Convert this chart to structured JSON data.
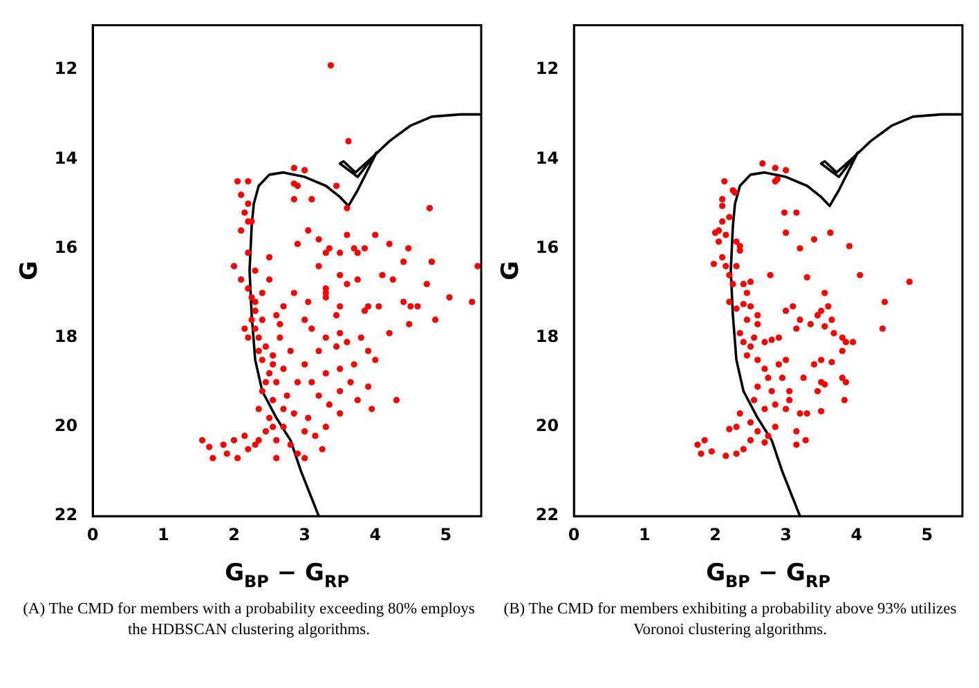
{
  "chart_data": [
    {
      "type": "scatter",
      "xlabel": "G$_{BP}$ − G$_{RP}$",
      "ylabel": "G",
      "xlim": [
        0,
        5.5
      ],
      "ylim": [
        22,
        11
      ],
      "xticks": [
        0,
        1,
        2,
        3,
        4,
        5
      ],
      "yticks": [
        12,
        14,
        16,
        18,
        20,
        22
      ],
      "grid": false,
      "legend": false,
      "annotations": [
        "(A) The CMD for members with a probability exceeding 80% employs the HDBSCAN clustering algorithms."
      ],
      "series": [
        {
          "type": "scatter",
          "marker": "circle",
          "color": "#ff0000",
          "x": [
            3.37,
            3.62,
            2.85,
            3.0,
            2.85,
            2.9,
            2.85,
            3.1,
            3.45,
            3.6,
            4.77,
            2.05,
            2.2,
            2.1,
            2.2,
            2.15,
            2.2,
            2.1,
            2.25,
            2.5,
            3.05,
            2.9,
            3.2,
            3.35,
            3.6,
            3.7,
            4.0,
            3.85,
            3.75,
            4.2,
            4.47,
            3.5,
            3.3,
            4.4,
            4.8,
            5.45,
            3.2,
            3.5,
            3.75,
            4.1,
            4.25,
            4.73,
            3.3,
            3.6,
            2.85,
            3.05,
            3.3,
            3.3,
            4.4,
            4.5,
            4.6,
            5.05,
            5.37,
            4.85,
            4.48,
            3.5,
            3.45,
            3.85,
            3.9,
            4.05,
            4.2,
            4.3,
            3.0,
            3.1,
            2.7,
            2.4,
            2.6,
            2.5,
            2.3,
            2.2,
            2.0,
            2.1,
            2.2,
            2.25,
            2.3,
            2.15,
            2.35,
            2.45,
            2.55,
            2.65,
            2.8,
            2.7,
            2.4,
            2.5,
            2.6,
            2.4,
            2.55,
            2.75,
            2.9,
            3.0,
            3.2,
            3.3,
            3.45,
            3.5,
            3.6,
            3.8,
            3.9,
            4.0,
            3.7,
            3.5,
            3.3,
            3.1,
            3.2,
            3.35,
            3.5,
            3.65,
            3.9,
            3.95,
            3.75,
            3.5,
            3.3,
            3.05,
            2.85,
            2.7,
            2.5,
            2.35,
            2.45,
            2.6,
            2.8,
            3.0,
            3.15,
            3.25,
            2.3,
            2.15,
            2.0,
            1.85,
            1.55,
            1.65,
            1.7,
            1.9,
            2.05,
            2.2,
            2.6,
            2.9,
            3.0,
            2.35,
            2.55,
            2.7,
            2.45,
            2.55,
            2.35,
            2.3,
            2.2,
            2.25,
            2.65,
            2.4,
            2.3
          ],
          "values": [
            11.9,
            13.6,
            14.2,
            14.25,
            14.55,
            14.6,
            14.9,
            14.9,
            14.6,
            15.1,
            15.1,
            14.5,
            14.5,
            14.8,
            15.0,
            15.2,
            15.4,
            15.6,
            15.4,
            16.2,
            15.6,
            15.9,
            15.8,
            16.0,
            15.7,
            16.0,
            15.7,
            16.0,
            16.1,
            15.9,
            16.0,
            16.1,
            16.1,
            16.3,
            16.3,
            16.4,
            16.4,
            16.6,
            16.7,
            16.6,
            16.7,
            16.8,
            16.9,
            16.8,
            17.0,
            17.2,
            17.0,
            17.1,
            17.2,
            17.3,
            17.3,
            17.1,
            17.2,
            17.6,
            17.7,
            17.3,
            17.5,
            17.4,
            17.3,
            17.3,
            17.9,
            19.4,
            17.6,
            17.8,
            17.3,
            17.6,
            17.5,
            16.7,
            16.5,
            16.1,
            16.4,
            16.7,
            16.9,
            17.1,
            17.4,
            17.8,
            18.0,
            18.2,
            18.4,
            18.0,
            18.3,
            18.7,
            18.5,
            18.8,
            19.0,
            19.2,
            19.4,
            19.3,
            19.0,
            18.6,
            18.3,
            18.0,
            18.2,
            17.9,
            18.1,
            18.0,
            18.3,
            18.5,
            18.6,
            18.7,
            18.8,
            19.0,
            19.3,
            19.5,
            19.2,
            19.0,
            19.1,
            19.6,
            19.4,
            19.7,
            20.0,
            19.8,
            19.7,
            20.0,
            19.8,
            19.6,
            20.1,
            20.3,
            20.4,
            20.1,
            20.2,
            20.5,
            20.4,
            20.2,
            20.3,
            20.4,
            20.3,
            20.45,
            20.7,
            20.6,
            20.7,
            20.5,
            20.7,
            20.6,
            20.7,
            20.3,
            20.0,
            19.6,
            19.0,
            18.6,
            18.3,
            17.8,
            18.0,
            17.6,
            17.7,
            17.0,
            17.2
          ]
        },
        {
          "type": "line",
          "marker": "none",
          "line_style": "solid",
          "color": "#000000",
          "x": [
            3.2,
            2.95,
            2.8,
            2.6,
            2.4,
            2.3,
            2.25,
            2.22,
            2.25,
            2.28,
            2.35,
            2.5,
            2.7,
            3.0,
            3.3,
            3.5,
            3.62,
            3.75,
            4.02,
            3.75,
            3.5,
            3.55,
            3.72,
            4.0,
            4.2,
            4.5,
            4.8,
            5.2,
            5.5
          ],
          "values": [
            22,
            21,
            20.3,
            19.8,
            19.2,
            18.5,
            17.5,
            16.5,
            15.5,
            15.0,
            14.6,
            14.35,
            14.3,
            14.4,
            14.6,
            14.85,
            15.05,
            14.7,
            13.85,
            14.4,
            14.1,
            14.05,
            14.3,
            13.9,
            13.6,
            13.25,
            13.05,
            13.0,
            13.0
          ]
        }
      ]
    },
    {
      "type": "scatter",
      "xlabel": "G$_{BP}$ − G$_{RP}$",
      "ylabel": "G",
      "xlim": [
        0,
        5.5
      ],
      "ylim": [
        22,
        11
      ],
      "xticks": [
        0,
        1,
        2,
        3,
        4,
        5
      ],
      "yticks": [
        12,
        14,
        16,
        18,
        20,
        22
      ],
      "grid": false,
      "legend": false,
      "annotations": [
        "(B) The CMD for members exhibiting a probability above 93% utilizes Voronoi clustering algorithms."
      ],
      "series": [
        {
          "type": "scatter",
          "marker": "circle",
          "color": "#ff0000",
          "x": [
            2.67,
            2.85,
            3.0,
            2.85,
            2.88,
            2.13,
            2.25,
            2.28,
            2.1,
            2.1,
            2.2,
            2.1,
            2.05,
            2.0,
            2.05,
            2.15,
            2.3,
            2.35,
            2.35,
            2.98,
            3.15,
            3.0,
            3.2,
            3.4,
            3.63,
            3.9,
            1.98,
            2.1,
            2.15,
            2.2,
            2.25,
            2.3,
            2.4,
            2.5,
            2.45,
            2.78,
            3.3,
            4.05,
            4.75,
            2.2,
            2.3,
            2.4,
            2.5,
            2.45,
            2.6,
            2.6,
            2.35,
            2.4,
            2.5,
            2.55,
            2.7,
            2.8,
            2.9,
            2.45,
            2.6,
            2.7,
            2.75,
            2.6,
            2.8,
            2.55,
            2.7,
            2.85,
            2.35,
            2.5,
            2.6,
            2.75,
            2.3,
            2.2,
            2.4,
            2.3,
            2.15,
            1.75,
            1.8,
            1.85,
            1.95,
            2.5,
            2.7,
            2.85,
            3.0,
            3.0,
            3.0,
            3.1,
            3.15,
            3.2,
            3.25,
            3.05,
            3.05,
            3.2,
            3.15,
            3.15,
            3.28,
            3.3,
            3.35,
            3.4,
            3.45,
            3.5,
            3.55,
            3.6,
            3.55,
            3.65,
            3.45,
            3.5,
            3.55,
            3.5,
            3.5,
            3.65,
            3.68,
            3.8,
            3.8,
            3.85,
            3.95,
            3.8,
            3.83,
            3.85,
            4.4,
            4.37,
            2.9,
            2.95
          ],
          "values": [
            14.1,
            14.2,
            14.25,
            14.5,
            14.45,
            14.5,
            14.7,
            14.75,
            14.9,
            15.05,
            15.3,
            15.4,
            15.6,
            15.65,
            15.85,
            15.7,
            15.85,
            15.95,
            16.05,
            15.2,
            15.2,
            15.65,
            16.0,
            15.8,
            15.65,
            15.95,
            16.35,
            16.2,
            16.4,
            16.6,
            16.8,
            16.4,
            16.8,
            16.75,
            17.0,
            16.6,
            16.65,
            16.6,
            16.75,
            17.2,
            17.35,
            17.25,
            17.3,
            17.6,
            17.5,
            17.7,
            17.9,
            18.1,
            18.2,
            18.0,
            18.1,
            18.05,
            18.0,
            18.4,
            18.5,
            18.7,
            18.9,
            19.1,
            19.2,
            19.4,
            19.6,
            19.5,
            19.7,
            19.9,
            20.1,
            20.2,
            20.0,
            20.05,
            20.5,
            20.6,
            20.65,
            20.4,
            20.6,
            20.3,
            20.55,
            20.3,
            20.35,
            20.0,
            19.6,
            18.5,
            17.4,
            17.3,
            17.8,
            17.6,
            18.9,
            19.2,
            19.4,
            19.7,
            20.1,
            20.4,
            20.3,
            19.7,
            17.7,
            18.6,
            17.5,
            17.4,
            17.0,
            17.3,
            17.75,
            17.6,
            19.2,
            19.0,
            19.05,
            19.65,
            18.5,
            18.55,
            17.9,
            18.0,
            18.3,
            18.1,
            18.1,
            18.9,
            19.4,
            19.0,
            17.2,
            17.8,
            18.6,
            18.9
          ]
        },
        {
          "type": "line",
          "marker": "none",
          "line_style": "solid",
          "color": "#000000",
          "x": [
            3.2,
            2.95,
            2.8,
            2.6,
            2.4,
            2.3,
            2.25,
            2.22,
            2.25,
            2.28,
            2.35,
            2.5,
            2.7,
            3.0,
            3.3,
            3.5,
            3.62,
            3.75,
            4.02,
            3.75,
            3.5,
            3.55,
            3.72,
            4.0,
            4.2,
            4.5,
            4.8,
            5.2,
            5.5
          ],
          "values": [
            22,
            21,
            20.3,
            19.8,
            19.2,
            18.5,
            17.5,
            16.5,
            15.5,
            15.0,
            14.6,
            14.35,
            14.3,
            14.4,
            14.6,
            14.85,
            15.05,
            14.7,
            13.85,
            14.4,
            14.1,
            14.05,
            14.3,
            13.9,
            13.6,
            13.25,
            13.05,
            13.0,
            13.0
          ]
        }
      ]
    }
  ]
}
